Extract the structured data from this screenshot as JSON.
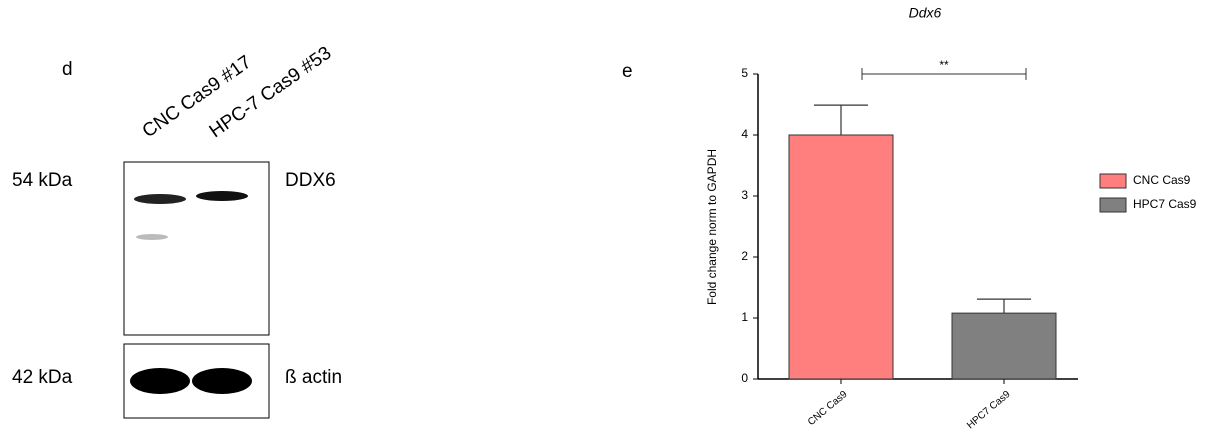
{
  "panel_d": {
    "label": "d",
    "lanes": [
      "CNC Cas9 #17",
      "HPC-7 Cas9 #53"
    ],
    "blots": [
      {
        "size": "54 kDa",
        "protein": "DDX6"
      },
      {
        "size": "42 kDa",
        "protein": "ß actin"
      }
    ]
  },
  "chart_data": {
    "type": "bar",
    "panel_label": "e",
    "title": "Ddx6",
    "y_label": "Fold change norm to GAPDH",
    "categories": [
      "CNC Cas9",
      "HPC7 Cas9"
    ],
    "series": [
      {
        "name": "CNC Cas9",
        "color": "#ff7f7f",
        "values": [
          4.0,
          null
        ],
        "errors": [
          0.49,
          null
        ]
      },
      {
        "name": "HPC7 Cas9",
        "color": "#808080",
        "values": [
          null,
          1.08
        ],
        "errors": [
          null,
          0.23
        ]
      }
    ],
    "annotation": "**",
    "ylim": [
      0,
      5
    ],
    "yticks": [
      0,
      1,
      2,
      3,
      4,
      5
    ]
  }
}
